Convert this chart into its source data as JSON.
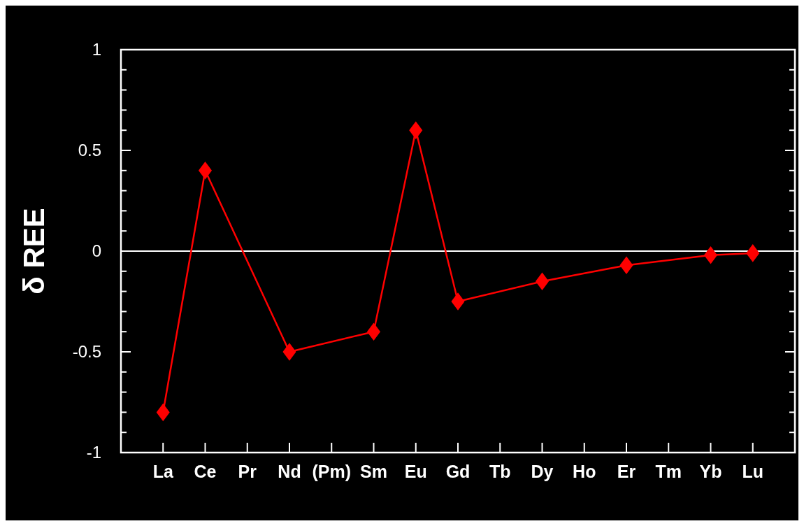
{
  "chart_data": {
    "type": "line",
    "ylabel": "δ REE",
    "categories": [
      "La",
      "Ce",
      "Pr",
      "Nd",
      "(Pm)",
      "Sm",
      "Eu",
      "Gd",
      "Tb",
      "Dy",
      "Ho",
      "Er",
      "Tm",
      "Yb",
      "Lu"
    ],
    "series": [
      {
        "color": "#ff0000",
        "values": [
          -0.8,
          0.4,
          null,
          -0.5,
          null,
          -0.4,
          0.6,
          -0.25,
          null,
          -0.15,
          null,
          -0.07,
          null,
          -0.02,
          -0.01
        ]
      }
    ],
    "ylim": [
      -1,
      1
    ],
    "yticks": [
      -1,
      {
        "value": -0.9,
        "label": null
      },
      {
        "value": -0.8,
        "label": null
      },
      {
        "value": -0.7,
        "label": null
      },
      {
        "value": -0.6,
        "label": null
      },
      -0.5,
      {
        "value": -0.4,
        "label": null
      },
      {
        "value": -0.3,
        "label": null
      },
      {
        "value": -0.2,
        "label": null
      },
      {
        "value": -0.1,
        "label": null
      },
      0,
      {
        "value": 0.1,
        "label": null
      },
      {
        "value": 0.2,
        "label": null
      },
      {
        "value": 0.3,
        "label": null
      },
      {
        "value": 0.4,
        "label": null
      },
      0.5,
      {
        "value": 0.6,
        "label": null
      },
      {
        "value": 0.7,
        "label": null
      },
      {
        "value": 0.8,
        "label": null
      },
      {
        "value": 0.9,
        "label": null
      },
      1
    ],
    "ref_lines": [
      {
        "axis": "y",
        "value": 0,
        "color": "#ffffff"
      }
    ],
    "marker": "diamond",
    "line_style": "solid",
    "grid": false
  }
}
